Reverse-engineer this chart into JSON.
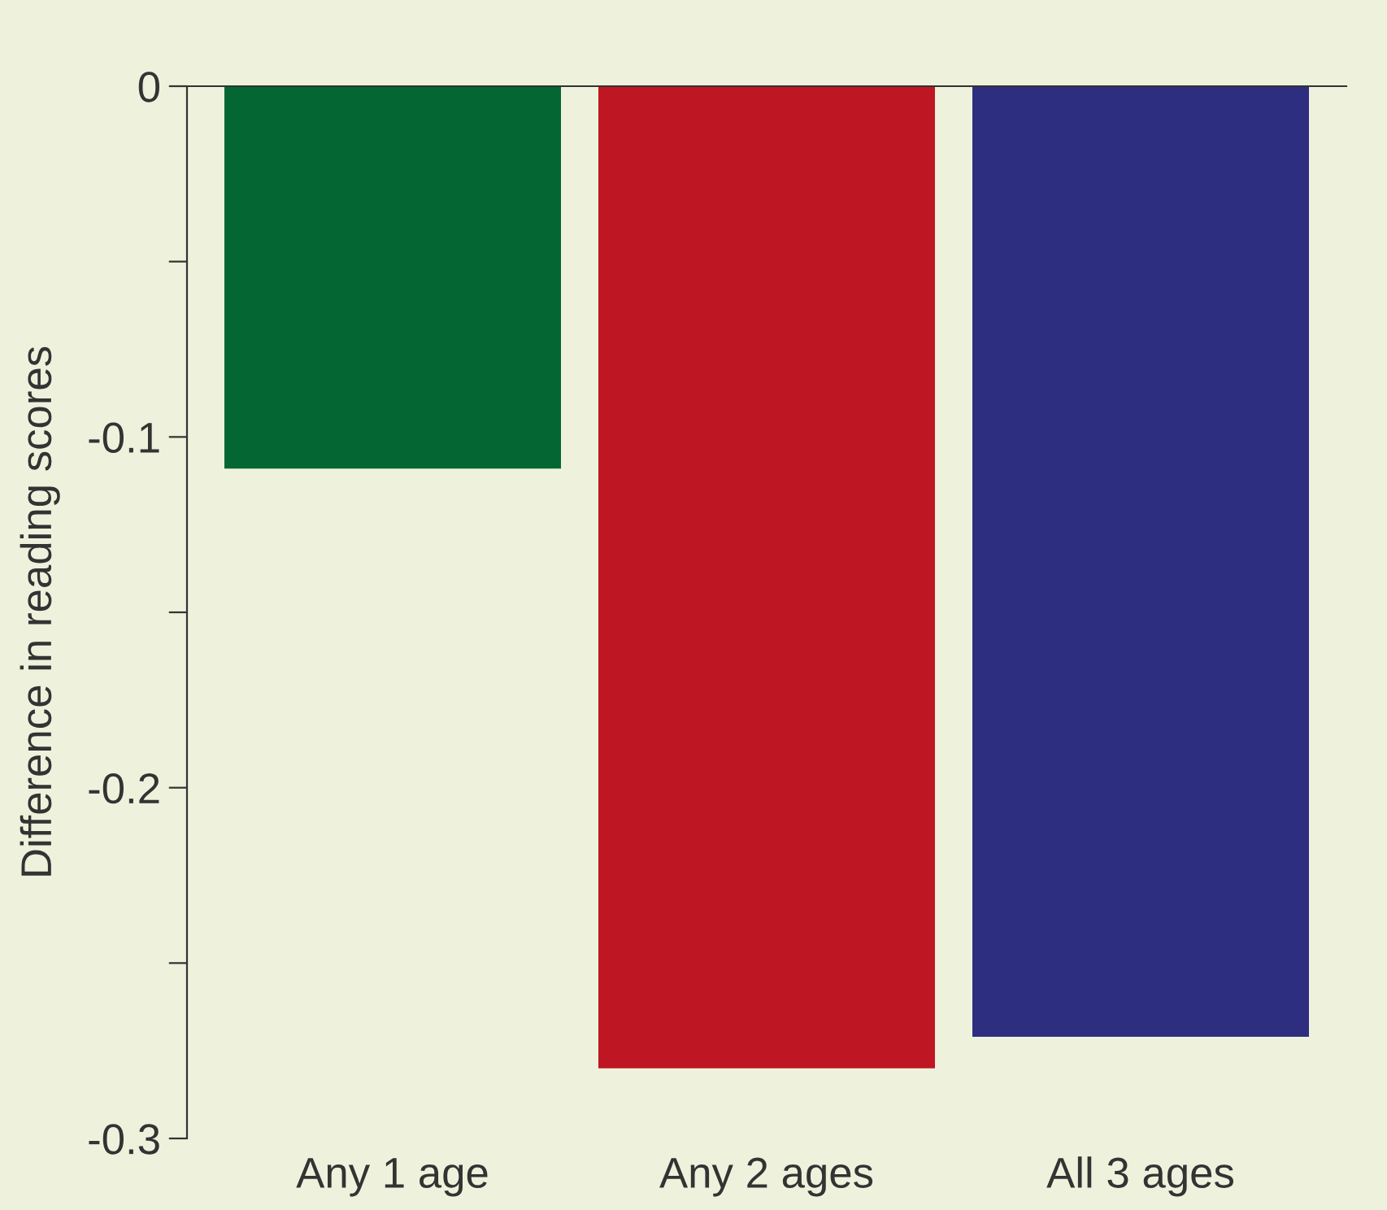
{
  "chart_data": {
    "type": "bar",
    "ylabel": "Difference in reading scores",
    "categories": [
      "Any 1 age",
      "Any 2 ages",
      "All 3 ages"
    ],
    "values": [
      -0.109,
      -0.28,
      -0.271
    ],
    "colors": [
      "#036633",
      "#be1622",
      "#2e2e80"
    ],
    "ylim": [
      -0.3,
      0
    ],
    "yticks": [
      0,
      {
        "value": -0.05,
        "label": null
      },
      {
        "value": -0.1,
        "label": "-0.1"
      },
      {
        "value": -0.15,
        "label": null
      },
      {
        "value": -0.2,
        "label": "-0.2"
      },
      {
        "value": -0.25,
        "label": null
      },
      {
        "value": -0.3,
        "label": "-0.3"
      }
    ],
    "grid": false,
    "legend": false
  }
}
